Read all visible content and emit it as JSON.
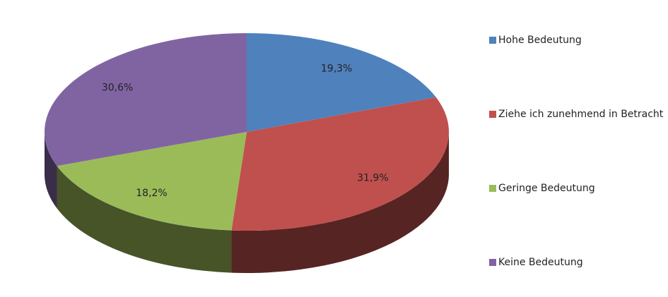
{
  "chart_data": {
    "type": "pie3d",
    "categories": [
      "Hohe Bedeutung",
      "Ziehe ich zunehmend in Betracht",
      "Geringe Bedeutung",
      "Keine Bedeutung"
    ],
    "values": [
      19.3,
      31.9,
      18.2,
      30.6
    ],
    "value_labels": [
      "19,3%",
      "31,9%",
      "18,2%",
      "30,6%"
    ],
    "colors": [
      "#4f81bd",
      "#c0504d",
      "#9bbb59",
      "#8064a2"
    ],
    "legend": "right"
  }
}
